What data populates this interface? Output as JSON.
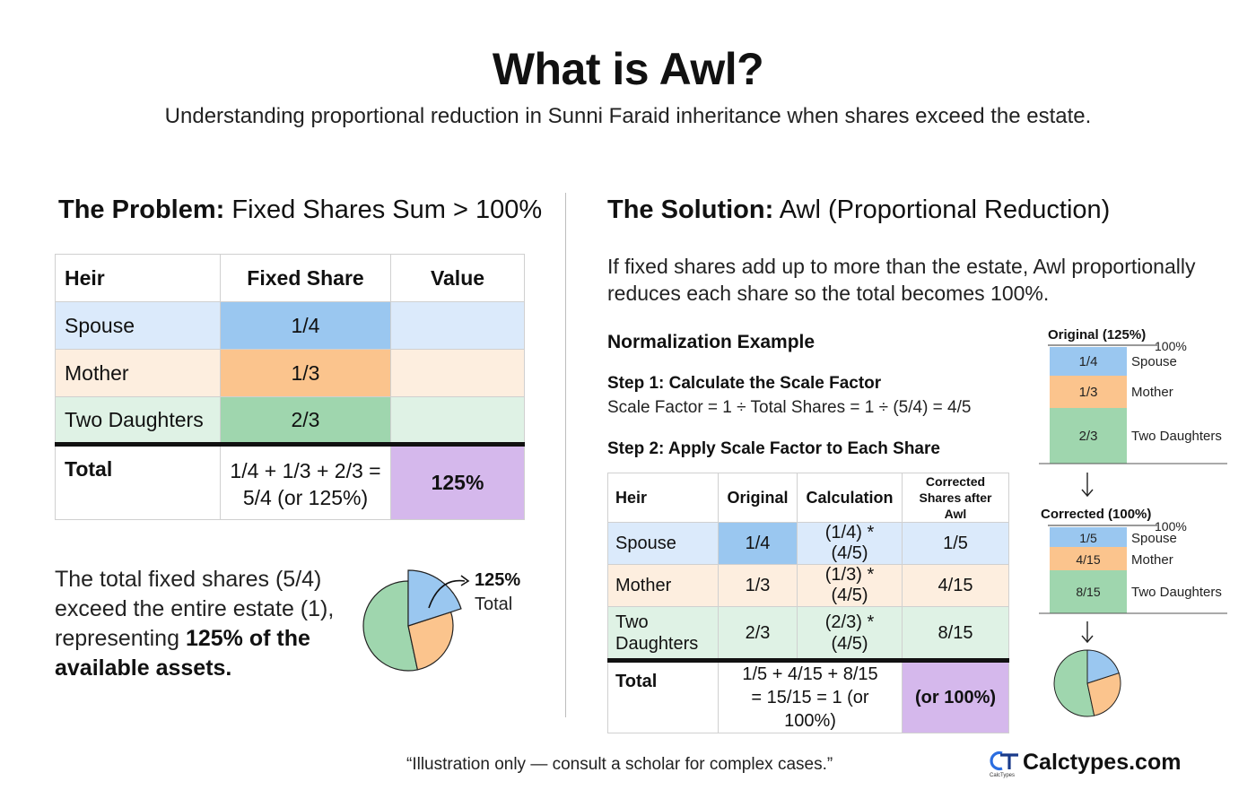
{
  "header": {
    "title": "What is Awl?",
    "subtitle": "Understanding proportional reduction in Sunni Faraid inheritance when shares exceed the estate."
  },
  "problem": {
    "heading_bold": "The Problem:",
    "heading_rest": " Fixed Shares Sum > 100%",
    "table": {
      "headers": [
        "Heir",
        "Fixed Share",
        "Value"
      ],
      "rows": [
        {
          "heir": "Spouse",
          "share": "1/4",
          "value": ""
        },
        {
          "heir": "Mother",
          "share": "1/3",
          "value": ""
        },
        {
          "heir": "Two Daughters",
          "share": "2/3",
          "value": ""
        }
      ],
      "total": {
        "label": "Total",
        "sum_line1": "1/4 + 1/3 + 2/3 =",
        "sum_line2": "5/4 (or 125%)",
        "value": "125%"
      }
    },
    "description_part1": "The total fixed shares (5/4) exceed the entire estate (1), representing ",
    "description_bold": "125% of the available assets.",
    "pie_label_pct": "125%",
    "pie_label_total": "Total"
  },
  "solution": {
    "heading_bold": "The Solution:",
    "heading_rest": " Awl (Proportional Reduction)",
    "description": "If fixed shares add up to more than the estate, Awl proportionally reduces each share so the total becomes 100%.",
    "normalization_title": "Normalization Example",
    "step1_title": "Step 1: Calculate the Scale Factor",
    "step1_formula": "Scale Factor = 1 ÷ Total Shares = 1 ÷ (5/4) = 4/5",
    "step2_title": "Step 2: Apply Scale Factor to Each Share",
    "table": {
      "headers": [
        "Heir",
        "Original",
        "Calculation",
        "Corrected Shares after Awl"
      ],
      "rows": [
        {
          "heir": "Spouse",
          "original": "1/4",
          "calc": "(1/4) * (4/5)",
          "corrected": "1/5"
        },
        {
          "heir": "Mother",
          "original": "1/3",
          "calc": "(1/3) * (4/5)",
          "corrected": "4/15"
        },
        {
          "heir": "Two Daughters",
          "original": "2/3",
          "calc": "(2/3) * (4/5)",
          "corrected": "8/15"
        }
      ],
      "total": {
        "label": "Total",
        "line1": "1/5 + 4/15 + 8/15",
        "line2": "= 15/15 = 1 (or 100%)",
        "value": "(or 100%)"
      }
    },
    "original_bar": {
      "title": "Original (125%)",
      "marker": "100%",
      "segments": [
        {
          "value": "1/4",
          "label": "Spouse"
        },
        {
          "value": "1/3",
          "label": "Mother"
        },
        {
          "value": "2/3",
          "label": "Two Daughters"
        }
      ]
    },
    "corrected_bar": {
      "title": "Corrected (100%)",
      "marker": "100%",
      "segments": [
        {
          "value": "1/5",
          "label": "Spouse"
        },
        {
          "value": "4/15",
          "label": "Mother"
        },
        {
          "value": "8/15",
          "label": "Two Daughters"
        }
      ]
    }
  },
  "footer": {
    "note": "“Illustration only — consult a scholar for complex cases.”",
    "brand": "Calctypes.com",
    "brand_sub": "CalcTypes"
  },
  "colors": {
    "spouse": "#9ac7f0",
    "mother": "#fbc48d",
    "daughters": "#9fd6ae",
    "total": "#d5b8ec"
  }
}
